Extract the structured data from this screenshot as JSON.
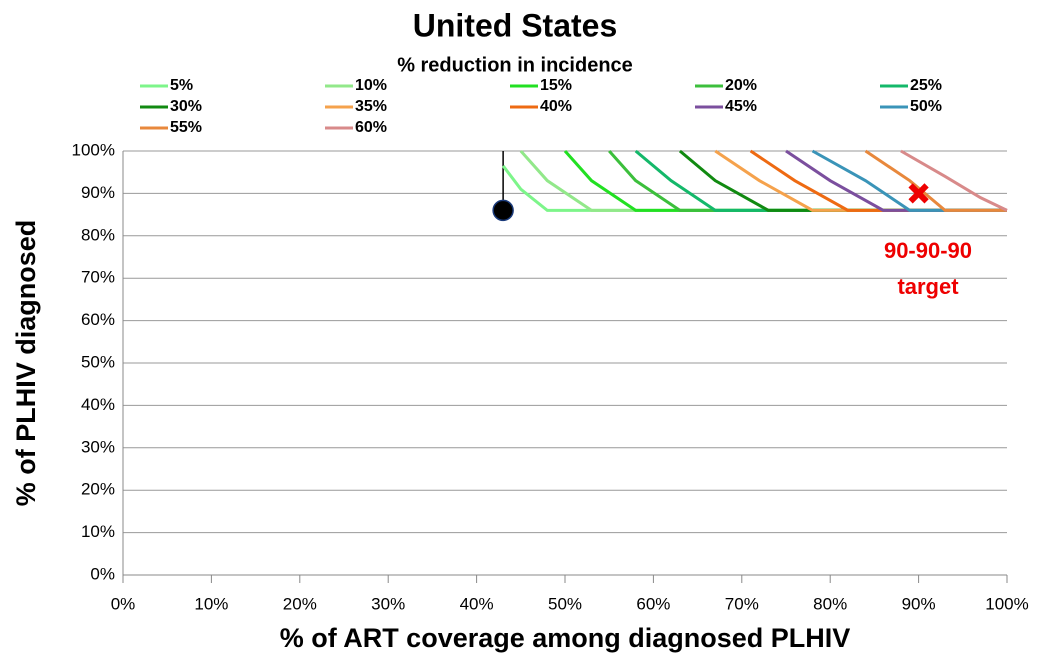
{
  "chart_data": {
    "type": "line",
    "title": "United States",
    "legend_title": "% reduction in  incidence",
    "xlabel": "% of ART coverage among diagnosed PLHIV",
    "ylabel": "% of PLHIV diagnosed",
    "xlim": [
      0,
      100
    ],
    "ylim": [
      0,
      100
    ],
    "grid": true,
    "xticks": [
      {
        "value": 0,
        "label": "0%"
      },
      {
        "value": 10,
        "label": "10%"
      },
      {
        "value": 20,
        "label": "20%"
      },
      {
        "value": 30,
        "label": "30%"
      },
      {
        "value": 40,
        "label": "40%"
      },
      {
        "value": 50,
        "label": "50%"
      },
      {
        "value": 60,
        "label": "60%"
      },
      {
        "value": 70,
        "label": "70%"
      },
      {
        "value": 80,
        "label": "80%"
      },
      {
        "value": 90,
        "label": "90%"
      },
      {
        "value": 100,
        "label": "100%"
      }
    ],
    "yticks": [
      {
        "value": 0,
        "label": "0%"
      },
      {
        "value": 10,
        "label": "10%"
      },
      {
        "value": 20,
        "label": "20%"
      },
      {
        "value": 30,
        "label": "30%"
      },
      {
        "value": 40,
        "label": "40%"
      },
      {
        "value": 50,
        "label": "50%"
      },
      {
        "value": 60,
        "label": "60%"
      },
      {
        "value": 70,
        "label": "70%"
      },
      {
        "value": 80,
        "label": "80%"
      },
      {
        "value": 90,
        "label": "90%"
      },
      {
        "value": 100,
        "label": "100%"
      }
    ],
    "series": [
      {
        "name": "5%",
        "color": "#7df58a",
        "x": [
          43,
          45,
          48,
          100
        ],
        "values": [
          96.5,
          91,
          86,
          86
        ]
      },
      {
        "name": "10%",
        "color": "#92e88a",
        "x": [
          45,
          48,
          53,
          100
        ],
        "values": [
          100,
          93,
          86,
          86
        ]
      },
      {
        "name": "15%",
        "color": "#22e022",
        "x": [
          50,
          53,
          58,
          100
        ],
        "values": [
          100,
          93,
          86,
          86
        ]
      },
      {
        "name": "20%",
        "color": "#3cbf3c",
        "x": [
          55,
          58,
          63,
          100
        ],
        "values": [
          100,
          93,
          86,
          86
        ]
      },
      {
        "name": "25%",
        "color": "#14b86a",
        "x": [
          58,
          62,
          67,
          100
        ],
        "values": [
          100,
          93,
          86,
          86
        ]
      },
      {
        "name": "30%",
        "color": "#118a11",
        "x": [
          63,
          67,
          73,
          100
        ],
        "values": [
          100,
          93,
          86,
          86
        ]
      },
      {
        "name": "35%",
        "color": "#f5a24c",
        "x": [
          67,
          72,
          78,
          100
        ],
        "values": [
          100,
          93,
          86,
          86
        ]
      },
      {
        "name": "40%",
        "color": "#ee6a12",
        "x": [
          71,
          76,
          82,
          100
        ],
        "values": [
          100,
          93,
          86,
          86
        ]
      },
      {
        "name": "45%",
        "color": "#7b4f9e",
        "x": [
          75,
          80,
          86,
          100
        ],
        "values": [
          100,
          93,
          86,
          86
        ]
      },
      {
        "name": "50%",
        "color": "#3a94b8",
        "x": [
          78,
          84,
          89,
          100
        ],
        "values": [
          100,
          93,
          86,
          86
        ]
      },
      {
        "name": "55%",
        "color": "#e8883c",
        "x": [
          84,
          89,
          93,
          100
        ],
        "values": [
          100,
          93,
          86,
          86
        ]
      },
      {
        "name": "60%",
        "color": "#d88a8a",
        "x": [
          88,
          93,
          97,
          100
        ],
        "values": [
          100,
          94,
          89,
          86
        ]
      }
    ],
    "current": {
      "x": 43,
      "y": 86
    },
    "target": {
      "x": 90,
      "y": 90,
      "label": [
        "90-90-90",
        "target"
      ]
    }
  }
}
